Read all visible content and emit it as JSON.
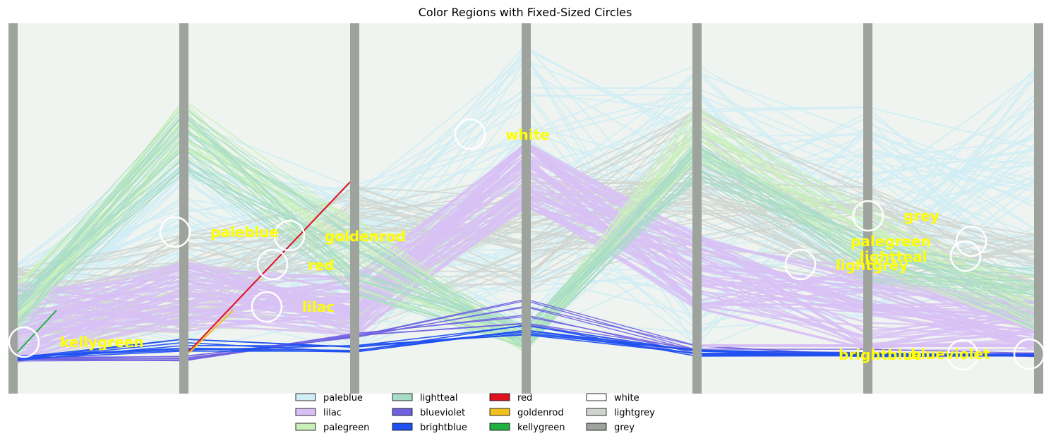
{
  "chart_data": {
    "type": "parallel-coordinates",
    "title": "Color Regions with Fixed-Sized Circles",
    "xlabel": "",
    "ylabel": "",
    "axes_count": 7,
    "grid": false,
    "legend_placement": "bottom-center",
    "colors": {
      "background": "#f0f4f0",
      "axis_bar": "#9ea39e",
      "label": "#ffff00",
      "circle": "#ffffff"
    },
    "legend": [
      {
        "name": "paleblue",
        "color": "#d0eef5"
      },
      {
        "name": "lilac",
        "color": "#d8c0f5"
      },
      {
        "name": "palegreen",
        "color": "#c8f0b8"
      },
      {
        "name": "lightteal",
        "color": "#a8dcc8"
      },
      {
        "name": "blueviolet",
        "color": "#7060e0"
      },
      {
        "name": "brightblue",
        "color": "#2050f0"
      },
      {
        "name": "red",
        "color": "#e01020"
      },
      {
        "name": "goldenrod",
        "color": "#f0c020"
      },
      {
        "name": "kellygreen",
        "color": "#20b040"
      },
      {
        "name": "white",
        "color": "#ffffff"
      },
      {
        "name": "lightgrey",
        "color": "#d0d4d0"
      },
      {
        "name": "grey",
        "color": "#9ea39e"
      }
    ],
    "region_labels": [
      {
        "text": "kellygreen"
      },
      {
        "text": "paleblue"
      },
      {
        "text": "goldenrod"
      },
      {
        "text": "red"
      },
      {
        "text": "lilac"
      },
      {
        "text": "white"
      },
      {
        "text": "grey"
      },
      {
        "text": "palegreen"
      },
      {
        "text": "lightteal"
      },
      {
        "text": "lightgrey"
      },
      {
        "text": "brightblue"
      },
      {
        "text": "blueviolet"
      }
    ]
  }
}
